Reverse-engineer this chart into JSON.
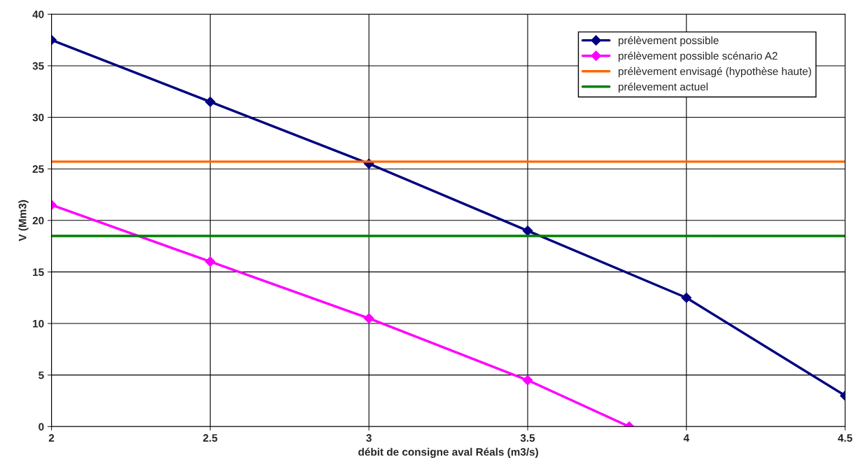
{
  "chart_data": {
    "type": "line",
    "xlabel": "débit de consigne aval Réals (m3/s)",
    "ylabel": "V (Mm3)",
    "xlim": [
      2,
      4.5
    ],
    "xticks": [
      2,
      2.5,
      3,
      3.5,
      4,
      4.5
    ],
    "ylim": [
      0,
      40
    ],
    "yticks": [
      0,
      5,
      10,
      15,
      20,
      25,
      30,
      35,
      40
    ],
    "grid": true,
    "legend": "top right",
    "series": [
      {
        "name": "prélèvement possible",
        "color": "#000080",
        "marker": "diamond",
        "x": [
          2,
          2.5,
          3,
          3.5,
          4,
          4.5
        ],
        "values": [
          37.5,
          31.5,
          25.5,
          19,
          12.5,
          3
        ]
      },
      {
        "name": "prélèvement possible scénario A2",
        "color": "#ff00ff",
        "marker": "diamond",
        "x": [
          2,
          2.5,
          3,
          3.5,
          3.82
        ],
        "values": [
          21.5,
          16,
          10.5,
          4.5,
          0
        ]
      },
      {
        "name": "prélèvement envisagé (hypothèse haute)",
        "color": "#ff6600",
        "marker": "none",
        "x": [
          2,
          4.5
        ],
        "values": [
          25.7,
          25.7
        ]
      },
      {
        "name": "prélevement actuel",
        "color": "#008000",
        "marker": "none",
        "x": [
          2,
          4.5
        ],
        "values": [
          18.5,
          18.5
        ]
      }
    ]
  }
}
